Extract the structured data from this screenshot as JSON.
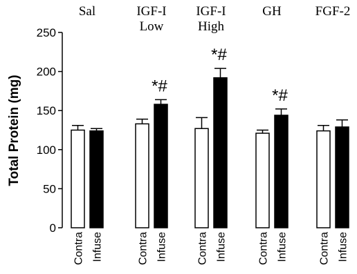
{
  "chart_data": {
    "type": "bar",
    "title": "",
    "xlabel": "",
    "ylabel": "Total Protein (mg)",
    "ylim": [
      0,
      250
    ],
    "yticks": [
      "0",
      "50",
      "100",
      "150",
      "200",
      "250"
    ],
    "groups": [
      {
        "label": [
          "Sal"
        ],
        "significance": "",
        "bars": [
          {
            "category": "Contra",
            "value": 125,
            "error": 6,
            "fill": "#ffffff"
          },
          {
            "category": "Infuse",
            "value": 124,
            "error": 3,
            "fill": "#000000"
          }
        ]
      },
      {
        "label": [
          "IGF-I",
          "Low"
        ],
        "significance": "*#",
        "bars": [
          {
            "category": "Contra",
            "value": 133,
            "error": 6,
            "fill": "#ffffff"
          },
          {
            "category": "Infuse",
            "value": 158,
            "error": 6,
            "fill": "#000000"
          }
        ]
      },
      {
        "label": [
          "IGF-I",
          "High"
        ],
        "significance": "*#",
        "bars": [
          {
            "category": "Contra",
            "value": 127,
            "error": 14,
            "fill": "#ffffff"
          },
          {
            "category": "Infuse",
            "value": 192,
            "error": 12,
            "fill": "#000000"
          }
        ]
      },
      {
        "label": [
          "GH"
        ],
        "significance": "*#",
        "bars": [
          {
            "category": "Contra",
            "value": 121,
            "error": 4,
            "fill": "#ffffff"
          },
          {
            "category": "Infuse",
            "value": 144,
            "error": 8,
            "fill": "#000000"
          }
        ]
      },
      {
        "label": [
          "FGF-2"
        ],
        "significance": "",
        "bars": [
          {
            "category": "Contra",
            "value": 124,
            "error": 7,
            "fill": "#ffffff"
          },
          {
            "category": "Infuse",
            "value": 129,
            "error": 9,
            "fill": "#000000"
          }
        ]
      }
    ],
    "grid": false,
    "legend": "none"
  }
}
